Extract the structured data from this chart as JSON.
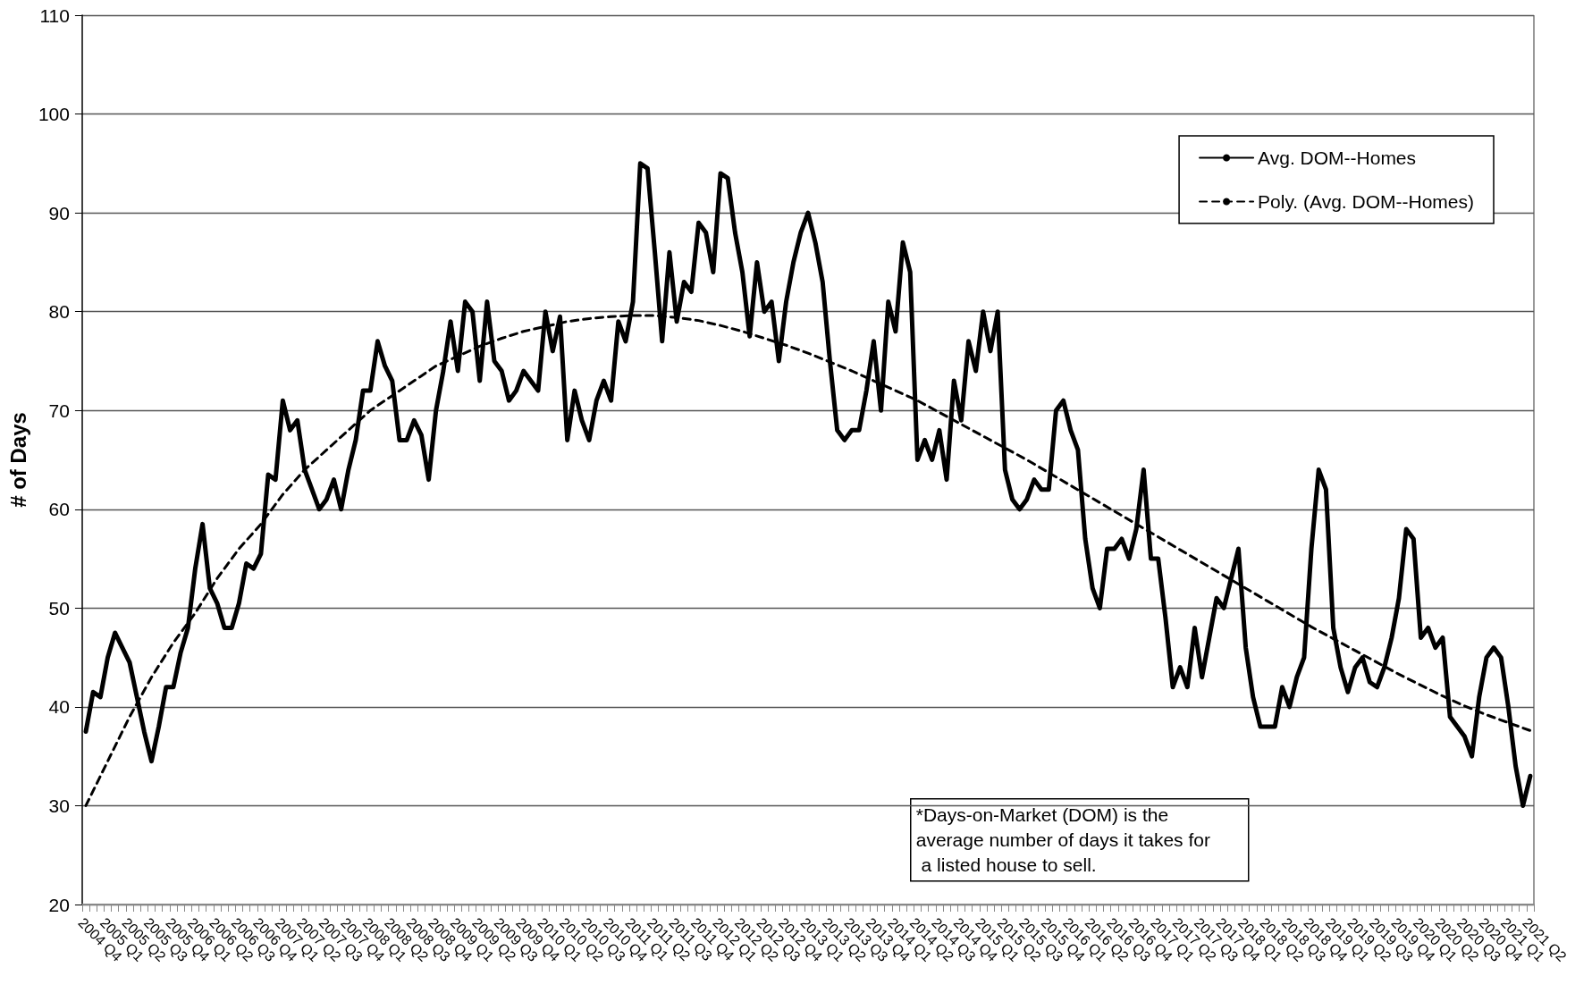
{
  "chart_data": {
    "type": "line",
    "ylabel": "# of Days",
    "ylim": [
      20,
      110
    ],
    "yticks": [
      20,
      30,
      40,
      50,
      60,
      70,
      80,
      90,
      100,
      110
    ],
    "grid": "y",
    "legend": "top right",
    "marker": "none",
    "categories": [
      "2004 Q4",
      null,
      null,
      "2005 Q1",
      null,
      null,
      "2005 Q2",
      null,
      null,
      "2005 Q3",
      null,
      null,
      "2005 Q4",
      null,
      null,
      "2006 Q1",
      null,
      null,
      "2006 Q2",
      null,
      null,
      "2006 Q3",
      null,
      null,
      "2006 Q4",
      null,
      null,
      "2007 Q1",
      null,
      null,
      "2007 Q2",
      null,
      null,
      "2007 Q3",
      null,
      null,
      "2007 Q4",
      null,
      null,
      "2008 Q1",
      null,
      null,
      "2008 Q2",
      null,
      null,
      "2008 Q3",
      null,
      null,
      "2008 Q4",
      null,
      null,
      "2009 Q1",
      null,
      null,
      "2009 Q2",
      null,
      null,
      "2009 Q3",
      null,
      null,
      "2009 Q4",
      null,
      null,
      "2010 Q1",
      null,
      null,
      "2010 Q2",
      null,
      null,
      "2010 Q3",
      null,
      null,
      "2010 Q4",
      null,
      null,
      "2011 Q1",
      null,
      null,
      "2011 Q2",
      null,
      null,
      "2011 Q3",
      null,
      null,
      "2011 Q4",
      null,
      null,
      "2012 Q1",
      null,
      null,
      "2012 Q2",
      null,
      null,
      "2012 Q3",
      null,
      null,
      "2012 Q4",
      null,
      null,
      "2013 Q1",
      null,
      null,
      "2013 Q2",
      null,
      null,
      "2013 Q3",
      null,
      null,
      "2013 Q4",
      null,
      null,
      "2014 Q1",
      null,
      null,
      "2014 Q2",
      null,
      null,
      "2014 Q3",
      null,
      null,
      "2014 Q4",
      null,
      null,
      "2015 Q1",
      null,
      null,
      "2015 Q2",
      null,
      null,
      "2015 Q3",
      null,
      null,
      "2015 Q4",
      null,
      null,
      "2016 Q1",
      null,
      null,
      "2016 Q2",
      null,
      null,
      "2016 Q3",
      null,
      null,
      "2016 Q4",
      null,
      null,
      "2017 Q1",
      null,
      null,
      "2017 Q2",
      null,
      null,
      "2017 Q3",
      null,
      null,
      "2017 Q4",
      null,
      null,
      "2018 Q1",
      null,
      null,
      "2018 Q2",
      null,
      null,
      "2018 Q3",
      null,
      null,
      "2018 Q4",
      null,
      null,
      "2019 Q1",
      null,
      null,
      "2019 Q2",
      null,
      null,
      "2019 Q3",
      null,
      null,
      "2019 Q4",
      null,
      null,
      "2020 Q1",
      null,
      null,
      "2020 Q2",
      null,
      null,
      "2020 Q3",
      null,
      null,
      "2020 Q4",
      null,
      null,
      "2021 Q1",
      null,
      null,
      "2021 Q2"
    ],
    "series": [
      {
        "name": "Avg. DOM--Homes",
        "color": "#000000",
        "line_style": "solid",
        "values": [
          37.5,
          41.5,
          41,
          45,
          47.5,
          46,
          44.5,
          41,
          37.5,
          34.5,
          38,
          42,
          42,
          45.5,
          48,
          54,
          58.5,
          52,
          50.5,
          48,
          48,
          50.5,
          54.5,
          54,
          55.5,
          63.5,
          63,
          71,
          68,
          69,
          64,
          62,
          60,
          61,
          63,
          60,
          64,
          67,
          72,
          72,
          77,
          74.5,
          73,
          67,
          67,
          69,
          67.5,
          63,
          70,
          74,
          79,
          74,
          81,
          80,
          73,
          81,
          75,
          74,
          71,
          72,
          74,
          73,
          72,
          80,
          76,
          79.5,
          67,
          72,
          69,
          67,
          71,
          73,
          71,
          79,
          77,
          81,
          95,
          94.5,
          86,
          77,
          86,
          79,
          83,
          82,
          89,
          88,
          84,
          94,
          93.5,
          88,
          84,
          77.5,
          85,
          80,
          81,
          75,
          81,
          85,
          88,
          90,
          87,
          83,
          75,
          68,
          67,
          68,
          68,
          72,
          77,
          70,
          81,
          78,
          87,
          84,
          65,
          67,
          65,
          68,
          63,
          73,
          69,
          77,
          74,
          80,
          76,
          80,
          64,
          61,
          60,
          61,
          63,
          62,
          62,
          70,
          71,
          68,
          66,
          57,
          52,
          50,
          56,
          56,
          57,
          55,
          58,
          64,
          55,
          55,
          49,
          42,
          44,
          42,
          48,
          43,
          47,
          51,
          50,
          53,
          56,
          46,
          41,
          38,
          38,
          38,
          42,
          40,
          43,
          45,
          56,
          64,
          62,
          48,
          44,
          41.5,
          44,
          45,
          42.5,
          42,
          44,
          47,
          51,
          58,
          57,
          47,
          48,
          46,
          47,
          39,
          38,
          37,
          35,
          41,
          45,
          46,
          45,
          40,
          34,
          30,
          33
        ]
      },
      {
        "name": "Poly. (Avg. DOM--Homes)",
        "color": "#000000",
        "line_style": "dashed",
        "x": [
          "2004 Q4",
          "2005 Q1",
          "2005 Q2",
          "2005 Q3",
          "2005 Q4",
          "2006 Q1",
          "2006 Q2",
          "2006 Q3",
          "2006 Q4",
          "2007 Q1",
          "2007 Q2",
          "2007 Q3",
          "2007 Q4",
          "2008 Q1",
          "2008 Q2",
          "2008 Q3",
          "2008 Q4",
          "2009 Q1",
          "2009 Q2",
          "2009 Q3",
          "2009 Q4",
          "2010 Q1",
          "2010 Q2",
          "2010 Q3",
          "2010 Q4",
          "2011 Q1",
          "2011 Q2",
          "2011 Q3",
          "2011 Q4",
          "2012 Q1",
          "2012 Q2",
          "2012 Q3",
          "2012 Q4",
          "2013 Q1",
          "2013 Q2",
          "2013 Q3",
          "2013 Q4",
          "2014 Q1",
          "2014 Q2",
          "2014 Q3",
          "2014 Q4",
          "2015 Q1",
          "2015 Q2",
          "2015 Q3",
          "2015 Q4",
          "2016 Q1",
          "2016 Q2",
          "2016 Q3",
          "2016 Q4",
          "2017 Q1",
          "2017 Q2",
          "2017 Q3",
          "2017 Q4",
          "2018 Q1",
          "2018 Q2",
          "2018 Q3",
          "2018 Q4",
          "2019 Q1",
          "2019 Q2",
          "2019 Q3",
          "2019 Q4",
          "2020 Q1",
          "2020 Q2",
          "2020 Q3",
          "2020 Q4",
          "2021 Q1",
          "2021 Q2"
        ],
        "values": [
          30,
          34.5,
          39,
          43,
          46.5,
          49.5,
          53,
          56,
          58.5,
          61.5,
          64,
          66,
          68,
          70,
          71.5,
          73,
          74.5,
          75.5,
          76.5,
          77.3,
          78,
          78.5,
          79,
          79.3,
          79.5,
          79.6,
          79.6,
          79.4,
          79.1,
          78.6,
          78,
          77.3,
          76.6,
          75.8,
          74.9,
          74,
          73,
          72,
          71,
          69.8,
          68.6,
          67.4,
          66.2,
          65,
          63.7,
          62.4,
          61.1,
          59.8,
          58.5,
          57.2,
          55.9,
          54.6,
          53.3,
          52,
          50.7,
          49.4,
          48.1,
          46.9,
          45.7,
          44.5,
          43.3,
          42.2,
          41.1,
          40.1,
          39.2,
          38.4,
          37.6
        ]
      }
    ],
    "annotations": [
      "*Days-on-Market (DOM) is the average number of days it takes for a listed house to sell."
    ]
  }
}
